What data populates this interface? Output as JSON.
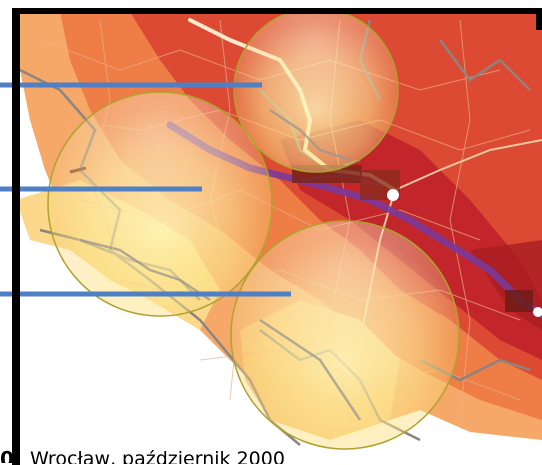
{
  "figure": {
    "caption_number": "0",
    "caption": "Wrocław, październik 2000"
  },
  "colors": {
    "frame": "#000000",
    "map_deep_red": "#c2262a",
    "map_red": "#dc4a33",
    "map_orange": "#ee7d46",
    "map_light_orange": "#f6a868",
    "map_yellow": "#fbe39a",
    "river": "#7a3a9a",
    "pointer_line": "#4f7fc4",
    "circle_edge": "#b0a22c",
    "city": "#7a2418"
  },
  "callouts": [
    {
      "id": "upper"
    },
    {
      "id": "middle"
    },
    {
      "id": "lower"
    }
  ]
}
